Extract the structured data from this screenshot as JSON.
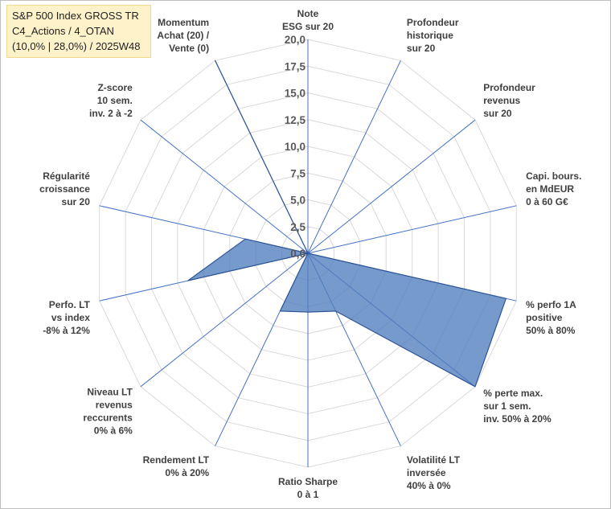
{
  "chart_data": {
    "type": "radar",
    "title_lines": [
      "S&P 500 Index GROSS TR",
      "C4_Actions / 4_OTAN",
      "(10,0% | 28,0%) / 2025W48"
    ],
    "r_range": [
      0,
      20
    ],
    "r_ticks": [
      "0,0",
      "2,5",
      "5,0",
      "7,5",
      "10,0",
      "12,5",
      "15,0",
      "17,5",
      "20,0"
    ],
    "axes": [
      [
        "Note",
        "ESG sur 20"
      ],
      [
        "Profondeur",
        "historique",
        "sur 20"
      ],
      [
        "Profondeur",
        "revenus",
        "sur 20"
      ],
      [
        "Capi. bours.",
        "en MdEUR",
        "0 à 60 G€"
      ],
      [
        "% perfo 1A",
        "positive",
        "50% à 80%"
      ],
      [
        "% perte max.",
        "sur 1 sem.",
        "inv. 50% à 20%"
      ],
      [
        "Volatilité LT",
        "inversée",
        "40% à 0%"
      ],
      [
        "Ratio Sharpe",
        "0 à 1"
      ],
      [
        "Rendement LT",
        "0% à 20%"
      ],
      [
        "Niveau LT",
        "revenus",
        "reccurents",
        "0% à 6%"
      ],
      [
        "Perfo. LT",
        "vs index",
        "-8% à 12%"
      ],
      [
        "Régularité",
        "croissance",
        "sur 20"
      ],
      [
        "Z-score",
        "10 sem.",
        "inv. 2 à -2"
      ],
      [
        "Momentum",
        "Achat (20) /",
        "Vente (0)"
      ]
    ],
    "series": [
      {
        "name": "S&P 500 Index GROSS TR",
        "values": [
          0,
          0,
          0,
          0,
          19,
          20,
          6,
          5.5,
          6,
          0,
          11.5,
          6,
          0,
          20
        ]
      }
    ],
    "colors": {
      "fill": "#4f7dbe",
      "fill_opacity": "0.78",
      "edge": "#2f5597",
      "grid": "#d9d9d9",
      "spoke": "#4472c4",
      "title_bg": "#fdf2c9"
    }
  }
}
